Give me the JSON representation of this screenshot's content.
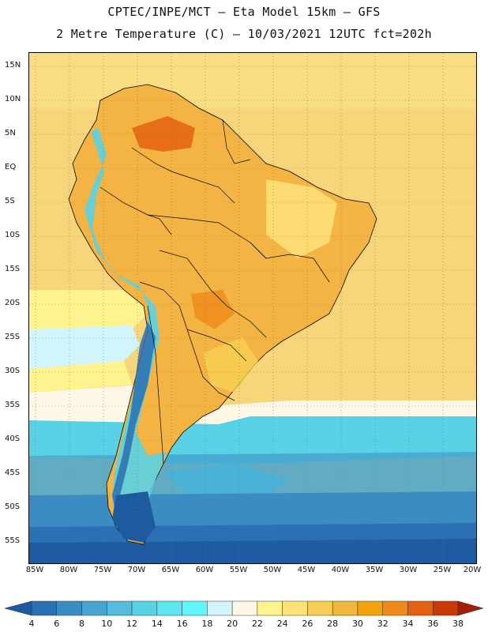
{
  "header": {
    "line1": "CPTEC/INPE/MCT –  Eta Model 15km – GFS",
    "line2": "2 Metre Temperature (C) – 10/03/2021 12UTC fct=202h"
  },
  "map": {
    "region": "South America",
    "lat_labels": [
      "15N",
      "10N",
      "5N",
      "EQ",
      "5S",
      "10S",
      "15S",
      "20S",
      "25S",
      "30S",
      "35S",
      "40S",
      "45S",
      "50S",
      "55S"
    ],
    "lon_labels": [
      "85W",
      "80W",
      "75W",
      "70W",
      "65W",
      "60W",
      "55W",
      "50W",
      "45W",
      "40W",
      "35W",
      "30W",
      "25W",
      "20W"
    ]
  },
  "legend": {
    "title": "2 Metre Temperature (C)",
    "values": [
      "4",
      "6",
      "8",
      "10",
      "12",
      "14",
      "16",
      "18",
      "20",
      "22",
      "24",
      "26",
      "28",
      "30",
      "32",
      "34",
      "36",
      "38"
    ],
    "colors": [
      "#1e5aa0",
      "#2a70b2",
      "#3c8cc4",
      "#48a4d0",
      "#55bcdc",
      "#5ad2e6",
      "#5ee6ee",
      "#60f8fa",
      "#d2f4fc",
      "#fff8e6",
      "#fef38e",
      "#fde27a",
      "#f7cf56",
      "#efb83a",
      "#f4a20a",
      "#ee8a1a",
      "#e36212",
      "#c83a0a",
      "#a02008"
    ]
  }
}
